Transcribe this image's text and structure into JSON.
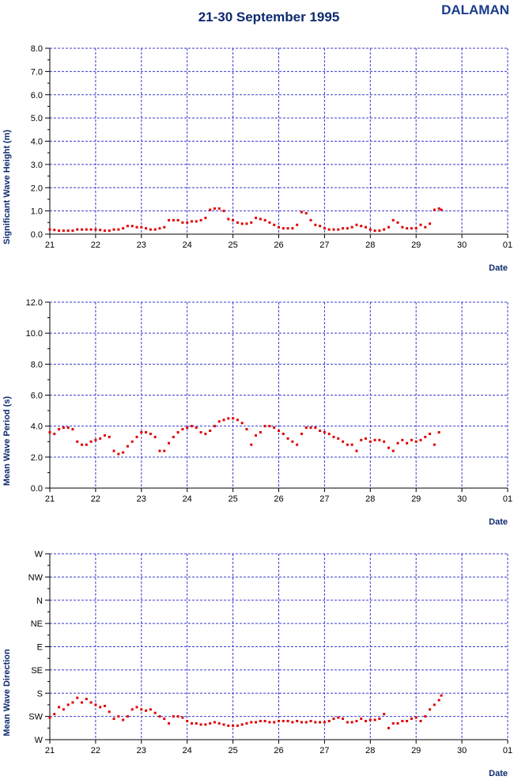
{
  "header": {
    "title": "21-30 September 1995",
    "station": "DALAMAN"
  },
  "colors": {
    "title": "#0d2a6e",
    "station": "#1a3c8c",
    "grid": "#3a3acf",
    "points": "#e00000"
  },
  "chart_data": [
    {
      "type": "scatter",
      "title": "",
      "xlabel": "Date",
      "ylabel": "Significant Wave Height (m)",
      "x_tick_labels": [
        "21",
        "22",
        "23",
        "24",
        "25",
        "26",
        "27",
        "28",
        "29",
        "30",
        "01"
      ],
      "xlim": [
        21,
        31
      ],
      "y_tick_labels": [
        "0.0",
        "1.0",
        "2.0",
        "3.0",
        "4.0",
        "5.0",
        "6.0",
        "7.0",
        "8.0"
      ],
      "ylim": [
        0,
        8
      ],
      "grid": true,
      "series": [
        {
          "x": [
            21.0,
            21.1,
            21.2,
            21.3,
            21.4,
            21.5,
            21.6,
            21.7,
            21.8,
            21.9,
            22.0,
            22.1,
            22.2,
            22.3,
            22.4,
            22.5,
            22.6,
            22.7,
            22.8,
            22.9,
            23.0,
            23.1,
            23.2,
            23.3,
            23.4,
            23.5,
            23.6,
            23.7,
            23.8,
            23.9,
            24.0,
            24.1,
            24.2,
            24.3,
            24.4,
            24.5,
            24.6,
            24.7,
            24.8,
            24.9,
            25.0,
            25.1,
            25.2,
            25.3,
            25.4,
            25.5,
            25.6,
            25.7,
            25.8,
            25.9,
            26.0,
            26.1,
            26.2,
            26.3,
            26.4,
            26.5,
            26.6,
            26.7,
            26.8,
            26.9,
            27.0,
            27.1,
            27.2,
            27.3,
            27.4,
            27.5,
            27.6,
            27.7,
            27.8,
            27.9,
            28.0,
            28.1,
            28.2,
            28.3,
            28.4,
            28.5,
            28.6,
            28.7,
            28.8,
            28.9,
            29.0,
            29.1,
            29.2,
            29.3,
            29.4,
            29.5,
            29.55
          ],
          "y": [
            0.2,
            0.18,
            0.15,
            0.15,
            0.15,
            0.15,
            0.2,
            0.2,
            0.2,
            0.2,
            0.2,
            0.18,
            0.15,
            0.15,
            0.2,
            0.2,
            0.25,
            0.35,
            0.35,
            0.3,
            0.3,
            0.25,
            0.2,
            0.2,
            0.25,
            0.3,
            0.6,
            0.6,
            0.6,
            0.5,
            0.5,
            0.55,
            0.55,
            0.6,
            0.7,
            1.05,
            1.1,
            1.1,
            1.0,
            0.65,
            0.6,
            0.5,
            0.45,
            0.45,
            0.5,
            0.7,
            0.65,
            0.6,
            0.5,
            0.4,
            0.3,
            0.25,
            0.25,
            0.25,
            0.4,
            0.95,
            0.9,
            0.6,
            0.4,
            0.35,
            0.25,
            0.2,
            0.2,
            0.2,
            0.25,
            0.25,
            0.3,
            0.4,
            0.35,
            0.3,
            0.2,
            0.15,
            0.15,
            0.2,
            0.3,
            0.6,
            0.5,
            0.3,
            0.25,
            0.25,
            0.25,
            0.4,
            0.3,
            0.45,
            1.05,
            1.1,
            1.05
          ]
        }
      ]
    },
    {
      "type": "scatter",
      "title": "",
      "xlabel": "Date",
      "ylabel": "Mean Wave Period (s)",
      "x_tick_labels": [
        "21",
        "22",
        "23",
        "24",
        "25",
        "26",
        "27",
        "28",
        "29",
        "30",
        "01"
      ],
      "xlim": [
        21,
        31
      ],
      "y_tick_labels": [
        "0.0",
        "2.0",
        "4.0",
        "6.0",
        "8.0",
        "10.0",
        "12.0"
      ],
      "ylim": [
        0,
        12
      ],
      "grid": true,
      "series": [
        {
          "x": [
            21.0,
            21.1,
            21.2,
            21.3,
            21.4,
            21.5,
            21.6,
            21.7,
            21.8,
            21.9,
            22.0,
            22.1,
            22.2,
            22.3,
            22.4,
            22.5,
            22.6,
            22.7,
            22.8,
            22.9,
            23.0,
            23.1,
            23.2,
            23.3,
            23.4,
            23.5,
            23.6,
            23.7,
            23.8,
            23.9,
            24.0,
            24.1,
            24.2,
            24.3,
            24.4,
            24.5,
            24.6,
            24.7,
            24.8,
            24.9,
            25.0,
            25.1,
            25.2,
            25.3,
            25.4,
            25.5,
            25.6,
            25.7,
            25.8,
            25.9,
            26.0,
            26.1,
            26.2,
            26.3,
            26.4,
            26.5,
            26.6,
            26.7,
            26.8,
            26.9,
            27.0,
            27.1,
            27.2,
            27.3,
            27.4,
            27.5,
            27.6,
            27.7,
            27.8,
            27.9,
            28.0,
            28.1,
            28.2,
            28.3,
            28.4,
            28.5,
            28.6,
            28.7,
            28.8,
            28.9,
            29.0,
            29.1,
            29.2,
            29.3,
            29.4,
            29.5
          ],
          "y": [
            3.6,
            3.5,
            3.8,
            3.9,
            3.9,
            3.8,
            3.0,
            2.8,
            2.8,
            3.0,
            3.1,
            3.2,
            3.4,
            3.3,
            2.4,
            2.2,
            2.3,
            2.7,
            3.0,
            3.3,
            3.6,
            3.6,
            3.5,
            3.3,
            2.4,
            2.4,
            2.9,
            3.3,
            3.6,
            3.8,
            3.9,
            4.0,
            3.9,
            3.6,
            3.5,
            3.7,
            4.0,
            4.3,
            4.4,
            4.5,
            4.5,
            4.4,
            4.2,
            3.8,
            2.8,
            3.4,
            3.6,
            4.0,
            4.0,
            3.9,
            3.7,
            3.5,
            3.2,
            3.0,
            2.8,
            3.5,
            3.9,
            3.9,
            3.9,
            3.7,
            3.6,
            3.5,
            3.3,
            3.2,
            3.0,
            2.8,
            2.8,
            2.4,
            3.1,
            3.2,
            3.0,
            3.1,
            3.1,
            3.0,
            2.6,
            2.4,
            2.9,
            3.1,
            2.9,
            3.1,
            3.0,
            3.1,
            3.3,
            3.5,
            2.8,
            3.6
          ]
        }
      ]
    },
    {
      "type": "scatter",
      "title": "",
      "xlabel": "Date",
      "ylabel": "Mean Wave Direction",
      "x_tick_labels": [
        "21",
        "22",
        "23",
        "24",
        "25",
        "26",
        "27",
        "28",
        "29",
        "30",
        "01"
      ],
      "xlim": [
        21,
        31
      ],
      "y_tick_labels": [
        "W",
        "SW",
        "S",
        "SE",
        "E",
        "NE",
        "N",
        "NW",
        "W"
      ],
      "ylim": [
        0,
        8
      ],
      "grid": true,
      "series": [
        {
          "x": [
            21.0,
            21.1,
            21.2,
            21.3,
            21.4,
            21.5,
            21.6,
            21.7,
            21.8,
            21.9,
            22.0,
            22.1,
            22.2,
            22.3,
            22.4,
            22.5,
            22.6,
            22.7,
            22.8,
            22.9,
            23.0,
            23.1,
            23.2,
            23.3,
            23.4,
            23.5,
            23.6,
            23.7,
            23.8,
            23.9,
            24.0,
            24.1,
            24.2,
            24.3,
            24.4,
            24.5,
            24.6,
            24.7,
            24.8,
            24.9,
            25.0,
            25.1,
            25.2,
            25.3,
            25.4,
            25.5,
            25.6,
            25.7,
            25.8,
            25.9,
            26.0,
            26.1,
            26.2,
            26.3,
            26.4,
            26.5,
            26.6,
            26.7,
            26.8,
            26.9,
            27.0,
            27.1,
            27.2,
            27.3,
            27.4,
            27.5,
            27.6,
            27.7,
            27.8,
            27.9,
            28.0,
            28.1,
            28.2,
            28.3,
            28.4,
            28.5,
            28.6,
            28.7,
            28.8,
            28.9,
            29.0,
            29.1,
            29.2,
            29.3,
            29.4,
            29.5,
            29.55
          ],
          "y": [
            0.95,
            1.1,
            1.4,
            1.3,
            1.5,
            1.6,
            1.8,
            1.6,
            1.75,
            1.6,
            1.5,
            1.4,
            1.45,
            1.2,
            0.9,
            1.0,
            0.85,
            1.0,
            1.3,
            1.4,
            1.3,
            1.25,
            1.3,
            1.15,
            1.0,
            0.9,
            0.7,
            1.0,
            1.0,
            0.95,
            0.8,
            0.7,
            0.7,
            0.65,
            0.65,
            0.7,
            0.75,
            0.7,
            0.65,
            0.6,
            0.6,
            0.6,
            0.65,
            0.7,
            0.75,
            0.75,
            0.8,
            0.8,
            0.75,
            0.75,
            0.8,
            0.8,
            0.8,
            0.75,
            0.8,
            0.75,
            0.75,
            0.8,
            0.75,
            0.75,
            0.75,
            0.8,
            0.9,
            0.95,
            0.9,
            0.75,
            0.75,
            0.8,
            0.9,
            0.8,
            0.85,
            0.85,
            0.9,
            1.1,
            0.5,
            0.7,
            0.7,
            0.8,
            0.8,
            0.9,
            0.95,
            0.8,
            1.0,
            1.3,
            1.5,
            1.7,
            1.9
          ]
        }
      ]
    }
  ]
}
